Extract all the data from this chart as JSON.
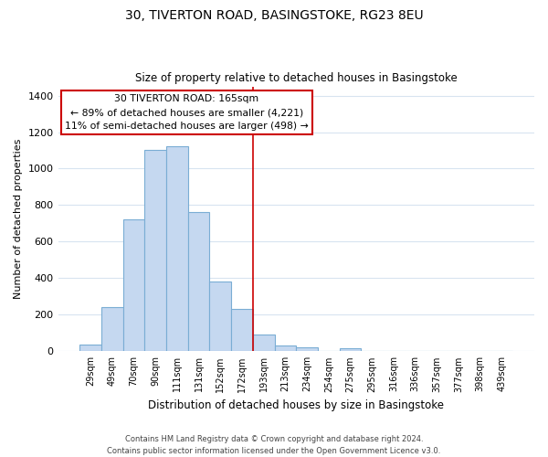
{
  "title": "30, TIVERTON ROAD, BASINGSTOKE, RG23 8EU",
  "subtitle": "Size of property relative to detached houses in Basingstoke",
  "xlabel": "Distribution of detached houses by size in Basingstoke",
  "ylabel": "Number of detached properties",
  "bar_labels": [
    "29sqm",
    "49sqm",
    "70sqm",
    "90sqm",
    "111sqm",
    "131sqm",
    "152sqm",
    "172sqm",
    "193sqm",
    "213sqm",
    "234sqm",
    "254sqm",
    "275sqm",
    "295sqm",
    "316sqm",
    "336sqm",
    "357sqm",
    "377sqm",
    "398sqm",
    "439sqm"
  ],
  "bar_values": [
    35,
    240,
    720,
    1100,
    1120,
    760,
    380,
    230,
    90,
    30,
    20,
    0,
    15,
    0,
    0,
    0,
    0,
    0,
    0,
    0
  ],
  "bar_color": "#c5d8f0",
  "bar_edge_color": "#7aadd4",
  "ylim": [
    0,
    1450
  ],
  "yticks": [
    0,
    200,
    400,
    600,
    800,
    1000,
    1200,
    1400
  ],
  "property_line_x": 7.5,
  "property_line_color": "#cc0000",
  "annotation_title": "30 TIVERTON ROAD: 165sqm",
  "annotation_line1": "← 89% of detached houses are smaller (4,221)",
  "annotation_line2": "11% of semi-detached houses are larger (498) →",
  "annotation_box_color": "#ffffff",
  "annotation_box_edge": "#cc0000",
  "footer_line1": "Contains HM Land Registry data © Crown copyright and database right 2024.",
  "footer_line2": "Contains public sector information licensed under the Open Government Licence v3.0.",
  "background_color": "#ffffff",
  "grid_color": "#d8e4f0"
}
